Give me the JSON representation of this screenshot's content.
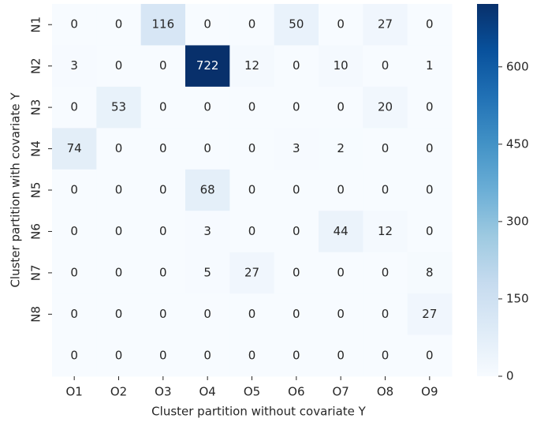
{
  "chart_data": {
    "type": "heatmap",
    "xlabel": "Cluster partition without covariate Y",
    "ylabel": "Cluster partition with covariate Y",
    "x_categories": [
      "O1",
      "O2",
      "O3",
      "O4",
      "O5",
      "O6",
      "O7",
      "O8",
      "O9"
    ],
    "y_categories": [
      "N1",
      "N2",
      "N3",
      "N4",
      "N5",
      "N6",
      "N7",
      "N8",
      null
    ],
    "values": [
      [
        0,
        0,
        116,
        0,
        0,
        50,
        0,
        27,
        0
      ],
      [
        3,
        0,
        0,
        722,
        12,
        0,
        10,
        0,
        1
      ],
      [
        0,
        53,
        0,
        0,
        0,
        0,
        0,
        20,
        0
      ],
      [
        74,
        0,
        0,
        0,
        0,
        3,
        2,
        0,
        0
      ],
      [
        0,
        0,
        0,
        68,
        0,
        0,
        0,
        0,
        0
      ],
      [
        0,
        0,
        0,
        3,
        0,
        0,
        44,
        12,
        0
      ],
      [
        0,
        0,
        0,
        5,
        27,
        0,
        0,
        0,
        8
      ],
      [
        0,
        0,
        0,
        0,
        0,
        0,
        0,
        0,
        27
      ],
      [
        0,
        0,
        0,
        0,
        0,
        0,
        0,
        0,
        0
      ]
    ],
    "colorscale": [
      "#f7fbff",
      "#deebf7",
      "#c6dbef",
      "#9ecae1",
      "#6baed6",
      "#4292c6",
      "#2171b5",
      "#08519c",
      "#08306b"
    ],
    "clim": [
      0,
      722
    ],
    "cticks": [
      0,
      150,
      300,
      450,
      600
    ]
  }
}
